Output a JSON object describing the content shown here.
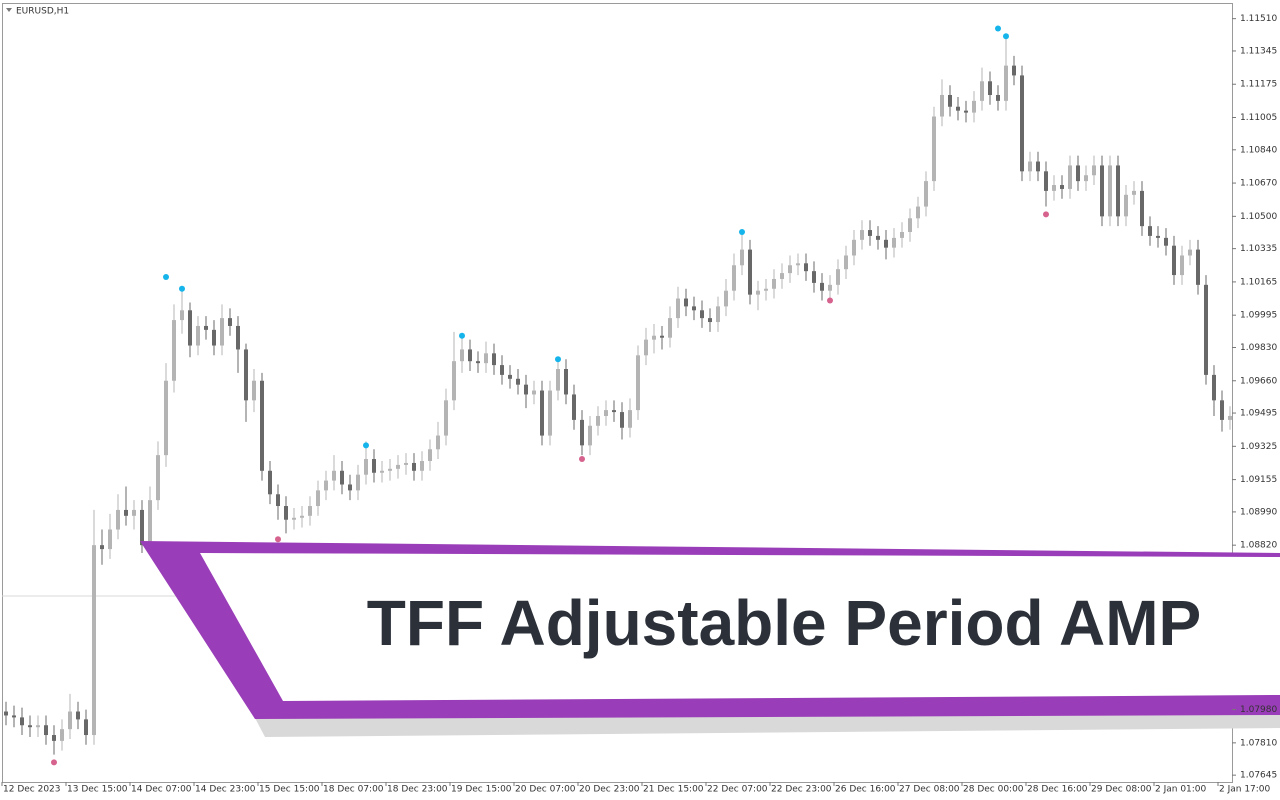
{
  "chart_data": {
    "type": "candlestick",
    "title": "EURUSD,H1",
    "annotation": "TFF Adjustable Period AMP",
    "up_color": "#b4b4b4",
    "down_color": "#686868",
    "ylim": [
      1.0761,
      1.1159
    ],
    "yticks": [
      {
        "value": 1.1151,
        "label": "1.11510"
      },
      1.11345,
      1.11175,
      1.11005,
      {
        "value": 1.1084,
        "label": "1.10840"
      },
      {
        "value": 1.1067,
        "label": "1.10670"
      },
      {
        "value": 1.105,
        "label": "1.10500"
      },
      1.10335,
      1.10165,
      1.09995,
      {
        "value": 1.0983,
        "label": "1.09830"
      },
      {
        "value": 1.0966,
        "label": "1.09660"
      },
      1.09495,
      1.09325,
      1.09155,
      {
        "value": 1.0899,
        "label": "1.08990"
      },
      {
        "value": 1.0882,
        "label": "1.08820"
      },
      {
        "value": 1.0798,
        "label": "1.07980"
      },
      {
        "value": 1.0781,
        "label": "1.07810"
      },
      1.07645
    ],
    "hline": 1.0856,
    "categories": [
      "12 Dec 2023",
      null,
      null,
      null,
      null,
      null,
      null,
      null,
      "13 Dec 15:00",
      null,
      null,
      null,
      null,
      null,
      null,
      null,
      "14 Dec 07:00",
      null,
      null,
      null,
      null,
      null,
      null,
      null,
      "14 Dec 23:00",
      null,
      null,
      null,
      null,
      null,
      null,
      null,
      "15 Dec 15:00",
      null,
      null,
      null,
      null,
      null,
      null,
      null,
      "18 Dec 07:00",
      null,
      null,
      null,
      null,
      null,
      null,
      null,
      "18 Dec 23:00",
      null,
      null,
      null,
      null,
      null,
      null,
      null,
      "19 Dec 15:00",
      null,
      null,
      null,
      null,
      null,
      null,
      null,
      "20 Dec 07:00",
      null,
      null,
      null,
      null,
      null,
      null,
      null,
      "20 Dec 23:00",
      null,
      null,
      null,
      null,
      null,
      null,
      null,
      "21 Dec 15:00",
      null,
      null,
      null,
      null,
      null,
      null,
      null,
      "22 Dec 07:00",
      null,
      null,
      null,
      null,
      null,
      null,
      null,
      "22 Dec 23:00",
      null,
      null,
      null,
      null,
      null,
      null,
      null,
      "26 Dec 16:00",
      null,
      null,
      null,
      null,
      null,
      null,
      null,
      "27 Dec 08:00",
      null,
      null,
      null,
      null,
      null,
      null,
      null,
      "28 Dec 00:00",
      null,
      null,
      null,
      null,
      null,
      null,
      null,
      "28 Dec 16:00",
      null,
      null,
      null,
      null,
      null,
      null,
      null,
      "29 Dec 08:00",
      null,
      null,
      null,
      null,
      null,
      null,
      null,
      "2 Jan 01:00",
      null,
      null,
      null,
      null,
      null,
      null,
      null,
      "2 Jan 17:00",
      null
    ],
    "open": [
      1.0797,
      1.0795,
      1.0794,
      1.079,
      1.0789,
      1.079,
      1.0785,
      1.0782,
      1.0788,
      1.0797,
      1.0793,
      1.0785,
      1.0882,
      1.088,
      1.089,
      1.09,
      1.0897,
      1.09,
      1.0882,
      1.0905,
      1.0928,
      1.0966,
      1.0997,
      1.1002,
      1.0984,
      1.0994,
      1.0992,
      1.0984,
      1.0998,
      1.0994,
      1.0982,
      1.0956,
      1.0966,
      1.092,
      1.0908,
      1.0902,
      1.0895,
      1.0896,
      1.0897,
      1.0902,
      1.091,
      1.0915,
      1.092,
      1.0913,
      1.091,
      1.0918,
      1.0926,
      1.0919,
      1.092,
      1.0921,
      1.0923,
      1.0924,
      1.092,
      1.0925,
      1.0931,
      1.0938,
      1.0956,
      1.0976,
      1.0982,
      1.0976,
      1.0975,
      1.098,
      1.0974,
      1.0969,
      1.0967,
      1.0964,
      1.0959,
      1.0961,
      1.0938,
      1.0961,
      1.0972,
      1.0959,
      1.0946,
      1.0933,
      1.0943,
      1.0948,
      1.0951,
      1.095,
      1.0942,
      1.0951,
      1.0979,
      1.0987,
      1.0989,
      1.0988,
      1.0998,
      1.1008,
      1.1004,
      1.1002,
      1.0998,
      1.0996,
      1.1004,
      1.1012,
      1.1025,
      1.1033,
      1.101,
      1.1012,
      1.1013,
      1.1018,
      1.1021,
      1.1025,
      1.1026,
      1.1022,
      1.1016,
      1.1012,
      1.1015,
      1.1023,
      1.103,
      1.1038,
      1.1043,
      1.104,
      1.1038,
      1.1034,
      1.1039,
      1.1042,
      1.1049,
      1.1055,
      1.1068,
      1.1101,
      1.1112,
      1.1106,
      1.1104,
      1.1103,
      1.1109,
      1.1119,
      1.1112,
      1.1109,
      1.1127,
      1.1122,
      1.1073,
      1.1078,
      1.1073,
      1.1063,
      1.1066,
      1.1064,
      1.1076,
      1.1068,
      1.1071,
      1.1076,
      1.105,
      1.1076,
      1.105,
      1.1061,
      1.1063,
      1.1045,
      1.104,
      1.1039,
      1.1035,
      1.102,
      1.103,
      1.1033,
      1.1015,
      1.0969,
      1.0956,
      1.0946
    ],
    "high": [
      1.0802,
      1.08,
      1.0799,
      1.0795,
      1.0795,
      1.0795,
      1.079,
      1.0793,
      1.0806,
      1.0802,
      1.0798,
      1.09,
      1.089,
      1.0898,
      1.0908,
      1.0912,
      1.0905,
      1.0905,
      1.0912,
      1.0935,
      1.0975,
      1.1005,
      1.1012,
      1.1006,
      1.0999,
      1.0999,
      1.0997,
      1.1005,
      1.1003,
      1.0999,
      1.0985,
      1.0972,
      1.097,
      1.0925,
      1.0913,
      1.0907,
      1.0901,
      1.0902,
      1.0907,
      1.0915,
      1.092,
      1.0928,
      1.0925,
      1.0918,
      1.0923,
      1.0935,
      1.0931,
      1.0925,
      1.0926,
      1.0928,
      1.0929,
      1.0929,
      1.093,
      1.0936,
      1.0945,
      1.0962,
      1.0991,
      1.0988,
      1.0987,
      1.0981,
      1.0986,
      1.0985,
      1.0979,
      1.0974,
      1.0972,
      1.0969,
      1.0966,
      1.0966,
      1.0966,
      1.0978,
      1.0977,
      1.0964,
      1.0951,
      1.0948,
      1.0953,
      1.0956,
      1.0956,
      1.0955,
      1.0957,
      1.0984,
      1.0993,
      1.0995,
      1.0994,
      1.1004,
      1.1014,
      1.1013,
      1.1009,
      1.1007,
      1.1003,
      1.1009,
      1.1018,
      1.1031,
      1.1042,
      1.1038,
      1.1017,
      1.1018,
      1.1023,
      1.1026,
      1.103,
      1.1031,
      1.1031,
      1.1027,
      1.1021,
      1.102,
      1.1028,
      1.1035,
      1.1043,
      1.1048,
      1.1048,
      1.1045,
      1.1043,
      1.1044,
      1.1047,
      1.1054,
      1.106,
      1.1073,
      1.1106,
      1.112,
      1.1117,
      1.1111,
      1.1109,
      1.1114,
      1.1126,
      1.1124,
      1.1117,
      1.1142,
      1.1132,
      1.1127,
      1.1083,
      1.1083,
      1.1078,
      1.1071,
      1.1071,
      1.1081,
      1.1081,
      1.1076,
      1.1081,
      1.1081,
      1.1081,
      1.1081,
      1.1066,
      1.1068,
      1.1068,
      1.105,
      1.1045,
      1.1044,
      1.104,
      1.1035,
      1.1038,
      1.1038,
      1.102,
      1.0974,
      1.0961,
      1.0953
    ],
    "low": [
      1.079,
      1.0789,
      1.0785,
      1.0784,
      1.0784,
      1.078,
      1.0775,
      1.0777,
      1.0783,
      1.0788,
      1.078,
      1.078,
      1.0872,
      1.0875,
      1.0885,
      1.0892,
      1.089,
      1.0878,
      1.0878,
      1.09,
      1.0922,
      1.096,
      1.099,
      1.0978,
      1.0979,
      1.0987,
      1.0979,
      1.0979,
      1.0989,
      1.097,
      1.0945,
      1.095,
      1.0915,
      1.0903,
      1.0895,
      1.0888,
      1.089,
      1.0891,
      1.0892,
      1.0897,
      1.0905,
      1.091,
      1.0908,
      1.0905,
      1.0905,
      1.0913,
      1.0914,
      1.0914,
      1.0915,
      1.0916,
      1.0918,
      1.0915,
      1.0915,
      1.092,
      1.0926,
      1.0933,
      1.0951,
      1.097,
      1.0971,
      1.097,
      1.097,
      1.0969,
      1.0964,
      1.0962,
      1.0959,
      1.0952,
      1.0954,
      1.0933,
      1.0933,
      1.0956,
      1.0954,
      1.0941,
      1.0928,
      1.0928,
      1.0938,
      1.0943,
      1.0945,
      1.0936,
      1.0937,
      1.0946,
      1.0974,
      1.098,
      1.0982,
      1.0983,
      1.0993,
      1.0999,
      1.0997,
      1.0993,
      1.0991,
      1.0991,
      1.0999,
      1.1007,
      1.102,
      1.1005,
      1.1002,
      1.1007,
      1.1008,
      1.1013,
      1.1016,
      1.102,
      1.1017,
      1.1011,
      1.1007,
      1.1007,
      1.101,
      1.1018,
      1.1025,
      1.1033,
      1.1035,
      1.1033,
      1.1028,
      1.1029,
      1.1034,
      1.1037,
      1.1044,
      1.105,
      1.1063,
      1.1096,
      1.1101,
      1.1099,
      1.1098,
      1.1098,
      1.1104,
      1.1107,
      1.1104,
      1.1104,
      1.1117,
      1.1068,
      1.1068,
      1.1068,
      1.1055,
      1.1058,
      1.1059,
      1.1059,
      1.1063,
      1.1063,
      1.1066,
      1.1045,
      1.1045,
      1.1045,
      1.1045,
      1.1056,
      1.104,
      1.1035,
      1.1034,
      1.103,
      1.1015,
      1.1015,
      1.1025,
      1.101,
      1.0964,
      1.0948,
      1.094,
      1.0941
    ],
    "close": [
      1.0795,
      1.0794,
      1.079,
      1.0789,
      1.079,
      1.0785,
      1.0782,
      1.0788,
      1.0797,
      1.0793,
      1.0785,
      1.0882,
      1.088,
      1.089,
      1.09,
      1.0897,
      1.09,
      1.0882,
      1.0905,
      1.0928,
      1.0966,
      1.0997,
      1.1002,
      1.0984,
      1.0994,
      1.0992,
      1.0984,
      1.0998,
      1.0994,
      1.0982,
      1.0956,
      1.0966,
      1.092,
      1.0908,
      1.0902,
      1.0895,
      1.0896,
      1.0897,
      1.0902,
      1.091,
      1.0915,
      1.092,
      1.0913,
      1.091,
      1.0918,
      1.0926,
      1.0919,
      1.092,
      1.0921,
      1.0923,
      1.0924,
      1.092,
      1.0925,
      1.0931,
      1.0938,
      1.0956,
      1.0976,
      1.0982,
      1.0976,
      1.0975,
      1.098,
      1.0974,
      1.0969,
      1.0967,
      1.0964,
      1.0959,
      1.0961,
      1.0938,
      1.0961,
      1.0972,
      1.0959,
      1.0946,
      1.0933,
      1.0943,
      1.0948,
      1.0951,
      1.095,
      1.0942,
      1.0951,
      1.0979,
      1.0987,
      1.0989,
      1.0988,
      1.0998,
      1.1008,
      1.1004,
      1.1002,
      1.0998,
      1.0996,
      1.1004,
      1.1012,
      1.1025,
      1.1033,
      1.101,
      1.1012,
      1.1013,
      1.1018,
      1.1021,
      1.1025,
      1.1026,
      1.1022,
      1.1016,
      1.1012,
      1.1015,
      1.1023,
      1.103,
      1.1038,
      1.1043,
      1.104,
      1.1038,
      1.1034,
      1.1039,
      1.1042,
      1.1049,
      1.1055,
      1.1068,
      1.1101,
      1.1112,
      1.1106,
      1.1104,
      1.1103,
      1.1109,
      1.1119,
      1.1112,
      1.1109,
      1.1127,
      1.1122,
      1.1073,
      1.1078,
      1.1073,
      1.1063,
      1.1066,
      1.1064,
      1.1076,
      1.1068,
      1.1071,
      1.1076,
      1.105,
      1.1076,
      1.105,
      1.1061,
      1.1063,
      1.1045,
      1.104,
      1.1039,
      1.1035,
      1.102,
      1.103,
      1.1033,
      1.1015,
      1.0969,
      1.0956,
      1.0946,
      1.0948
    ],
    "markers": [
      {
        "color": "#15b4ea",
        "x": [
          20,
          22,
          45,
          57,
          69,
          92,
          124,
          125
        ],
        "values": [
          1.1019,
          1.1013,
          1.0933,
          1.0989,
          1.0977,
          1.1042,
          1.1146,
          1.1142
        ]
      },
      {
        "color": "#d6628e",
        "x": [
          6,
          34,
          72,
          103,
          130
        ],
        "values": [
          1.0771,
          1.0885,
          1.0926,
          1.1007,
          1.1051
        ]
      }
    ]
  }
}
